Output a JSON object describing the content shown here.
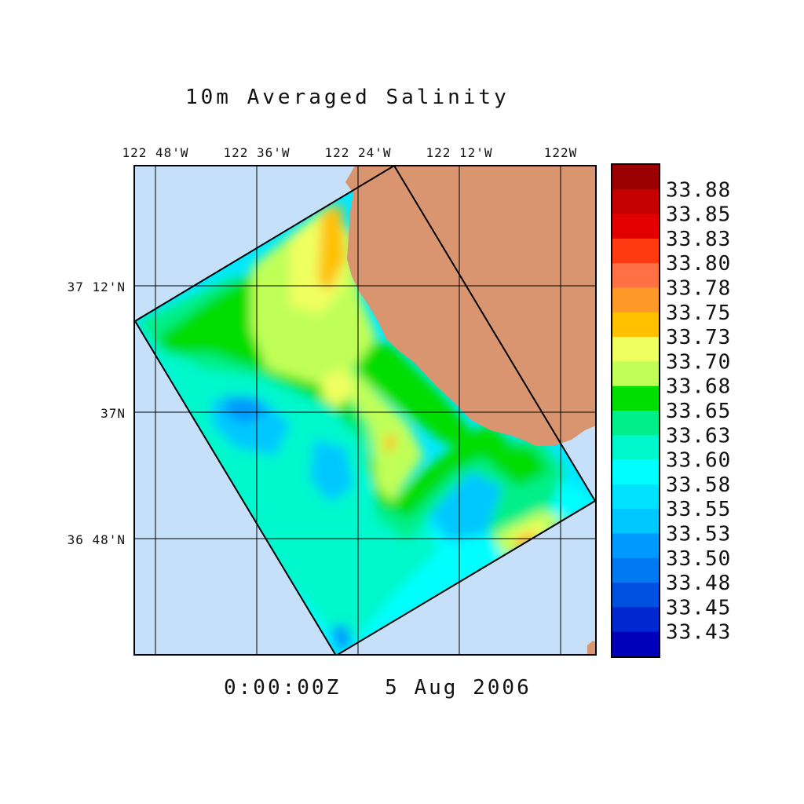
{
  "title": "10m Averaged Salinity",
  "timestamp": "0:00:00Z   5 Aug 2006",
  "colors": {
    "ocean": "#c5e0f8",
    "land": "#d99570",
    "grid": "#000000"
  },
  "axes": {
    "lon_ticks": [
      "122 48'W",
      "122 36'W",
      "122 24'W",
      "122 12'W",
      "122W"
    ],
    "lat_ticks": [
      "37 12'N",
      "37N",
      "36 48'N"
    ]
  },
  "colorbar": {
    "swatches": [
      "#9b0000",
      "#c40000",
      "#e30000",
      "#ff3a10",
      "#ff7045",
      "#ff9a28",
      "#ffc000",
      "#f0ff60",
      "#c0ff58",
      "#00dd00",
      "#00ef88",
      "#00f8cc",
      "#00ffff",
      "#00e2ff",
      "#00c8ff",
      "#0099ff",
      "#0078f0",
      "#0050e0",
      "#0028d0",
      "#0000b8"
    ],
    "labels": [
      "33.88",
      "33.85",
      "33.83",
      "33.80",
      "33.78",
      "33.75",
      "33.73",
      "33.70",
      "33.68",
      "33.65",
      "33.63",
      "33.60",
      "33.58",
      "33.55",
      "33.53",
      "33.50",
      "33.48",
      "33.45",
      "33.43"
    ]
  }
}
